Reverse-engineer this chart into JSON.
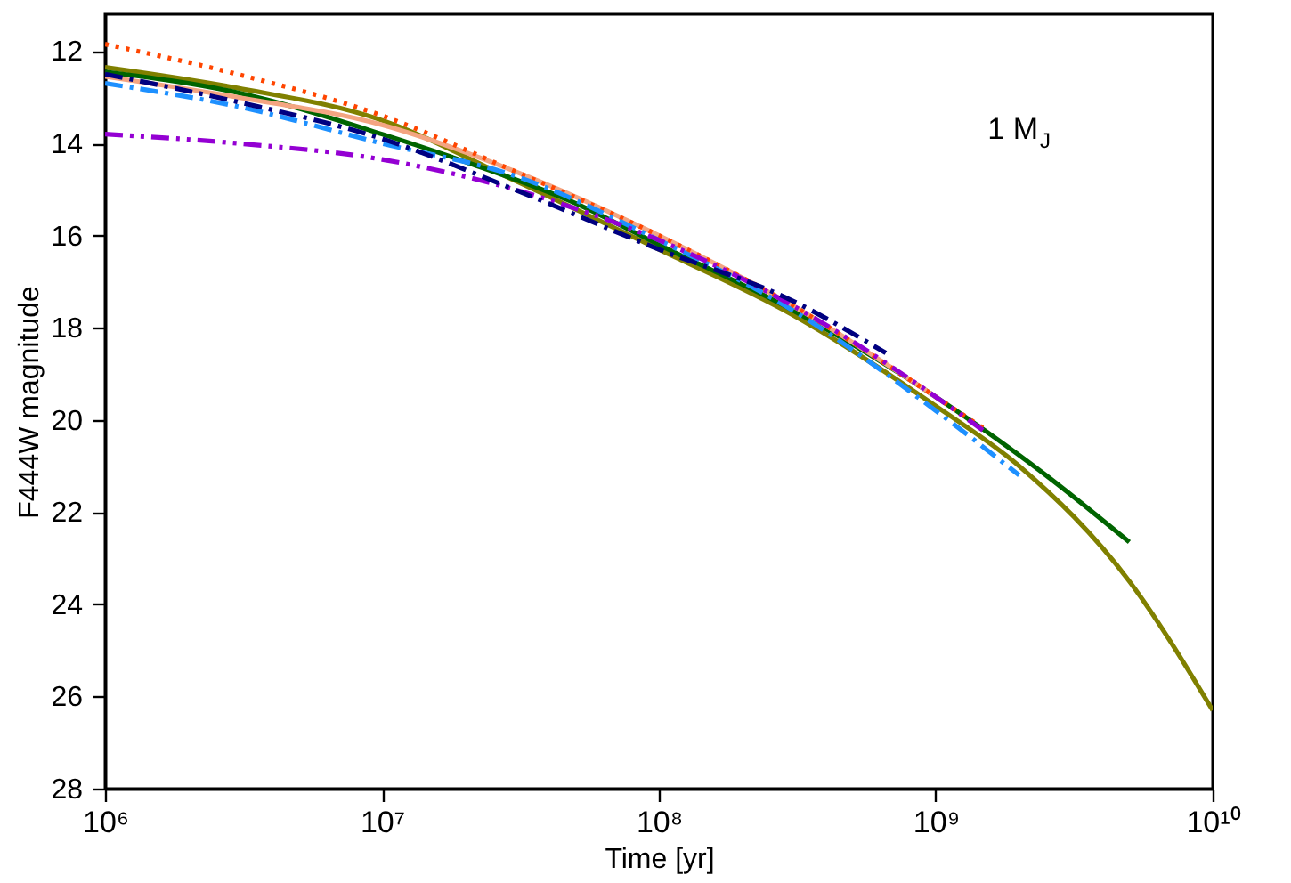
{
  "chart_data": {
    "type": "line",
    "xlabel": "Time [yr]",
    "ylabel": "F444W magnitude",
    "log": "x",
    "grid": false,
    "xlim": [
      1000000,
      10000000000
    ],
    "ylim": [
      28,
      11.2
    ],
    "xticks": [
      {
        "value": 1000000,
        "label": "10⁶"
      },
      {
        "value": 10000000,
        "label": "10⁷"
      },
      {
        "value": 100000000,
        "label": "10⁸"
      },
      {
        "value": 1000000000,
        "label": "10⁹"
      },
      {
        "value": 10000000000,
        "label": "10¹⁰"
      }
    ],
    "yticks": [
      12,
      14,
      16,
      18,
      20,
      22,
      24,
      26,
      28
    ],
    "annotations": [
      "1 M$_{J}$"
    ],
    "series": [
      {
        "color": "#808000",
        "line_style": "solid",
        "x": [
          1000000,
          3000000,
          10000000,
          30000000,
          100000000,
          300000000,
          1000000000,
          2000000000,
          5000000000,
          10000000000
        ],
        "values": [
          12.35,
          12.8,
          13.5,
          14.8,
          16.3,
          17.7,
          19.7,
          21.0,
          23.5,
          26.3
        ]
      },
      {
        "color": "#006400",
        "line_style": "solid",
        "x": [
          1000000,
          3000000,
          10000000,
          20000000,
          50000000,
          100000000,
          300000000,
          1000000000,
          2500000000,
          5000000000
        ],
        "values": [
          12.45,
          12.9,
          13.8,
          14.4,
          15.3,
          16.2,
          17.6,
          19.5,
          21.2,
          22.65
        ]
      },
      {
        "color": "#f4a582",
        "line_style": "solid",
        "x": [
          1000000,
          3000000,
          10000000,
          30000000,
          100000000,
          300000000,
          1000000000
        ],
        "values": [
          12.55,
          13.0,
          13.6,
          14.6,
          16.0,
          17.5,
          19.5
        ]
      },
      {
        "color": "#ff4500",
        "line_style": "dotted",
        "x": [
          1000000,
          3000000,
          10000000,
          30000000,
          100000000,
          300000000,
          1000000000,
          1500000000
        ],
        "values": [
          11.85,
          12.5,
          13.4,
          14.6,
          16.0,
          17.5,
          19.5,
          20.2
        ]
      },
      {
        "color": "#1e90ff",
        "line_style": "dashdot",
        "x": [
          1000000,
          3000000,
          10000000,
          30000000,
          100000000,
          300000000,
          1000000000,
          2000000000
        ],
        "values": [
          12.7,
          13.2,
          14.0,
          14.7,
          16.1,
          17.6,
          19.8,
          21.2
        ]
      },
      {
        "color": "#9400d3",
        "line_style": "dashdotdot",
        "x": [
          1000000,
          3000000,
          10000000,
          30000000,
          100000000,
          300000000,
          1000000000,
          1500000000
        ],
        "values": [
          13.8,
          14.0,
          14.35,
          15.0,
          16.1,
          17.5,
          19.5,
          20.25
        ]
      },
      {
        "color": "#000080",
        "line_style": "dashdot",
        "x": [
          1000000,
          3000000,
          10000000,
          30000000,
          100000000,
          300000000,
          660000000
        ],
        "values": [
          12.5,
          13.1,
          13.9,
          15.0,
          16.3,
          17.4,
          18.55
        ]
      }
    ]
  }
}
